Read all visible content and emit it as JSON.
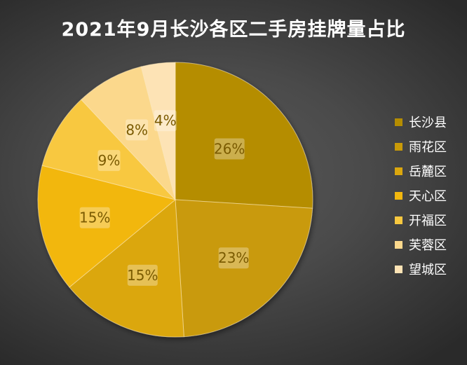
{
  "chart_data": {
    "type": "pie",
    "title": "2021年9月长沙各区二手房挂牌量占比",
    "categories": [
      "长沙县",
      "雨花区",
      "岳麓区",
      "天心区",
      "开福区",
      "芙蓉区",
      "望城区"
    ],
    "values": [
      26,
      23,
      15,
      15,
      9,
      8,
      4
    ],
    "data_labels": [
      "26%",
      "23%",
      "15%",
      "15%",
      "9%",
      "8%",
      "4%"
    ],
    "colors": [
      "#b58d00",
      "#c99a08",
      "#dba70e",
      "#f2b70e",
      "#f8c83f",
      "#fbd88c",
      "#fde3b5"
    ],
    "start_angle": "12 o'clock",
    "direction": "clockwise",
    "legend": "right"
  }
}
